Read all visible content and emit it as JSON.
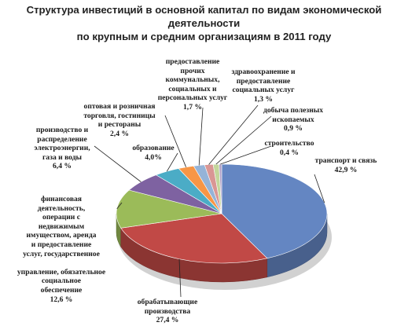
{
  "chart_data": {
    "type": "pie",
    "title": "Структура инвестиций в основной капитал по видам экономической деятельности\nпо крупным и средним организациям в 2011 году",
    "slices": [
      {
        "label": "транспорт и связь\n42,9 %",
        "value": 42.9,
        "color": "#6486c2"
      },
      {
        "label": "обрабатывающие\nпроизводства\n27,4 %",
        "value": 27.4,
        "color": "#c14946"
      },
      {
        "label": "финансовая\nдеятельность,\nоперации с\nнедвижимым\nимуществом, аренда\nи предоставление\nуслуг, государственное\n\nуправление, обязательное\nсоциальное\nобеспечение\n12,6 %",
        "value": 12.6,
        "color": "#9bbb59"
      },
      {
        "label": "производство и\nраспределение\nэлектроэнергии,\nгаза и воды\n6,4 %",
        "value": 6.4,
        "color": "#7e62a1"
      },
      {
        "label": "образование\n4,0%",
        "value": 4.0,
        "color": "#4bacc6"
      },
      {
        "label": "оптовая и розничная\nторговля, гостиницы\nи рестораны\n2,4 %",
        "value": 2.4,
        "color": "#f79646"
      },
      {
        "label": "предоставление\nпрочих\nкоммунальных,\nсоциальных и\nперсональных услуг\n1,7 %",
        "value": 1.7,
        "color": "#95b3d7"
      },
      {
        "label": "здравоохранение и\nпредоставление\nсоциальных услуг\n1,3 %",
        "value": 1.3,
        "color": "#d99694"
      },
      {
        "label": "добыча полезных\nископаемых\n0,9 %",
        "value": 0.9,
        "color": "#c3d69b"
      },
      {
        "label": "строительство\n0,4 %",
        "value": 0.4,
        "color": "#b2a2c7"
      }
    ]
  }
}
